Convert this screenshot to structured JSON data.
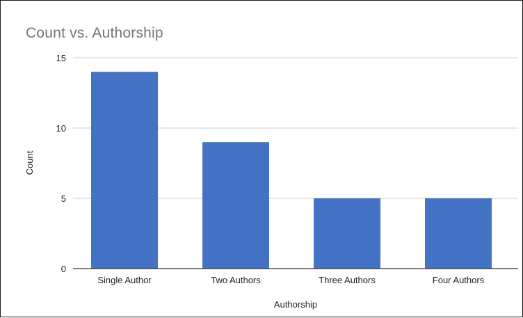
{
  "chart_data": {
    "type": "bar",
    "title": "Count vs. Authorship",
    "xlabel": "Authorship",
    "ylabel": "Count",
    "categories": [
      "Single Author",
      "Two Authors",
      "Three Authors",
      "Four Authors"
    ],
    "series": [
      {
        "values": [
          14,
          9,
          5,
          5
        ]
      }
    ],
    "ylim": [
      0,
      15
    ],
    "yticks": [
      0,
      5,
      10,
      15
    ],
    "grid": true,
    "legend": "none",
    "colors": {
      "bar": "#4472c4",
      "gridline": "#cfcfcf",
      "axis": "#333333"
    }
  }
}
